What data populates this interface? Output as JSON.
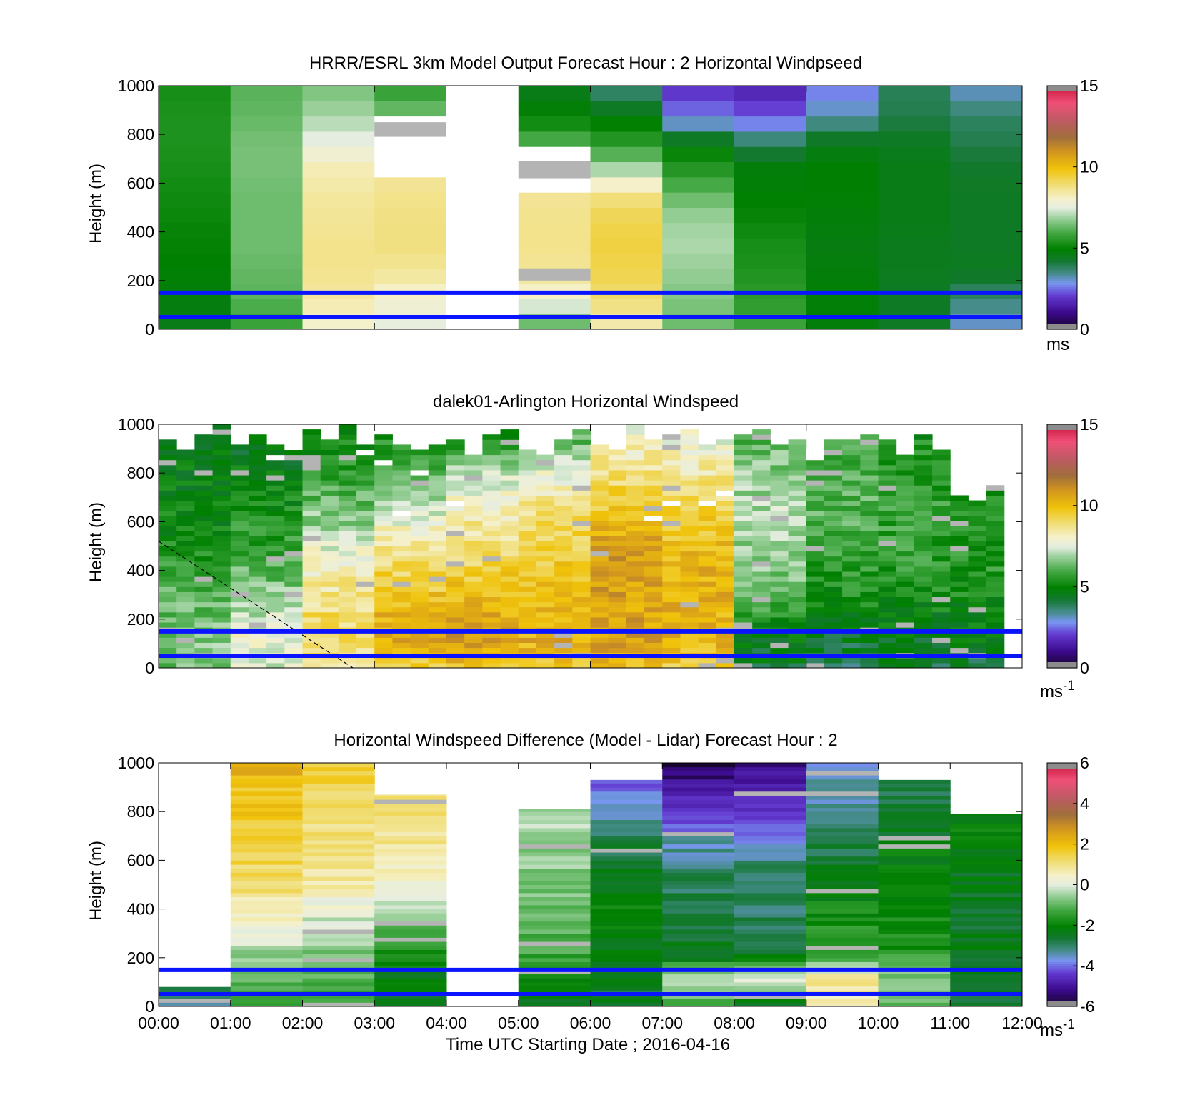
{
  "figure": {
    "x_tick_labels": [
      "00:00",
      "01:00",
      "02:00",
      "03:00",
      "04:00",
      "05:00",
      "06:00",
      "07:00",
      "08:00",
      "09:00",
      "10:00",
      "11:00",
      "12:00"
    ],
    "x_label": "Time UTC  Starting Date ; 2016-04-16"
  },
  "chart_data": [
    {
      "type": "heatmap",
      "title": "HRRR/ESRL 3km Model Output   Forecast Hour : 2 Horizontal Windpseed",
      "ylabel": "Height (m)",
      "ylim": [
        0,
        1000
      ],
      "y_ticks": [
        0,
        200,
        400,
        600,
        800,
        1000
      ],
      "xlim_hours": [
        0,
        12
      ],
      "colorbar": {
        "range": [
          0,
          15
        ],
        "ticks": [
          0,
          5,
          10,
          15
        ],
        "unit": "ms",
        "unit_sup": ""
      },
      "reference_heights_m": [
        150,
        50
      ],
      "description_columns": "hourly model columns 00:00-12:00, column 04:00-05:00 missing",
      "columns": [
        {
          "hour": 0,
          "values_by_height_bottom_to_top": [
            4.6,
            4.8,
            4.9,
            5.0,
            5.1,
            5.2,
            5.3,
            5.4,
            5.4,
            5.3
          ]
        },
        {
          "hour": 1,
          "values_by_height_bottom_to_top": [
            5.8,
            6.2,
            6.3,
            6.4,
            6.4,
            6.4,
            6.5,
            6.5,
            6.3,
            6.2
          ]
        },
        {
          "hour": 2,
          "values_by_height_bottom_to_top": [
            8.0,
            8.5,
            8.7,
            8.7,
            8.6,
            8.5,
            8.3,
            7.6,
            7.0,
            6.6
          ]
        },
        {
          "hour": 3,
          "values_by_height_bottom_to_top": [
            7.6,
            8.0,
            8.6,
            8.8,
            8.8,
            8.7,
            8.5,
            null,
            6.6,
            5.8
          ]
        },
        {
          "hour": 4,
          "values_by_height_bottom_to_top": [
            null,
            null,
            null,
            null,
            null,
            null,
            null,
            null,
            null,
            null
          ]
        },
        {
          "hour": 5,
          "values_by_height_bottom_to_top": [
            6.4,
            8.0,
            8.6,
            8.7,
            8.7,
            8.6,
            null,
            6.2,
            5.0,
            4.6
          ]
        },
        {
          "hour": 6,
          "values_by_height_bottom_to_top": [
            8.4,
            9.0,
            9.3,
            9.4,
            9.3,
            8.8,
            7.0,
            5.6,
            4.8,
            3.8
          ]
        },
        {
          "hour": 7,
          "values_by_height_bottom_to_top": [
            6.4,
            6.6,
            6.8,
            7.0,
            6.9,
            6.3,
            5.5,
            4.8,
            2.7,
            2.0
          ]
        },
        {
          "hour": 8,
          "values_by_height_bottom_to_top": [
            5.8,
            5.6,
            5.4,
            5.3,
            5.1,
            4.9,
            4.8,
            3.9,
            2.4,
            1.7
          ]
        },
        {
          "hour": 9,
          "values_by_height_bottom_to_top": [
            4.8,
            4.9,
            4.8,
            4.7,
            4.8,
            4.9,
            4.9,
            4.6,
            3.3,
            2.7
          ]
        },
        {
          "hour": 10,
          "values_by_height_bottom_to_top": [
            4.4,
            4.4,
            4.5,
            4.5,
            4.6,
            4.6,
            4.6,
            4.5,
            4.0,
            3.9
          ]
        },
        {
          "hour": 11,
          "values_by_height_bottom_to_top": [
            3.1,
            3.7,
            4.5,
            4.4,
            4.4,
            4.4,
            4.3,
            4.0,
            3.8,
            3.2
          ]
        }
      ]
    },
    {
      "type": "heatmap",
      "title": "dalek01-Arlington  Horizontal Windspeed",
      "ylabel": "Height (m)",
      "ylim": [
        0,
        1000
      ],
      "y_ticks": [
        0,
        200,
        400,
        600,
        800,
        1000
      ],
      "xlim_hours": [
        0,
        12
      ],
      "colorbar": {
        "range": [
          0,
          15
        ],
        "ticks": [
          0,
          5,
          10,
          15
        ],
        "unit": "ms",
        "unit_sup": "-1"
      },
      "reference_heights_m": [
        150,
        50
      ],
      "description_columns": "lidar profiles every 15 min 00:00-11:45; max height decreases after 09:00",
      "hourly_profiles": [
        {
          "hour": 0,
          "values_bottom_to_top": [
            6.5,
            6.6,
            6.4,
            6.0,
            5.6,
            5.2,
            5.0,
            4.8,
            4.7,
            4.7
          ],
          "top_m": 1000
        },
        {
          "hour": 1,
          "values_bottom_to_top": [
            7.5,
            7.8,
            7.2,
            6.6,
            6.0,
            5.6,
            5.2,
            4.9,
            4.6,
            4.5
          ],
          "top_m": 1000
        },
        {
          "hour": 2,
          "values_bottom_to_top": [
            8.6,
            9.2,
            9.0,
            8.6,
            8.0,
            7.2,
            6.4,
            5.8,
            5.3,
            5.0
          ],
          "top_m": 1000
        },
        {
          "hour": 3,
          "values_bottom_to_top": [
            9.4,
            10.5,
            10.2,
            9.6,
            9.0,
            8.2,
            7.2,
            6.2,
            5.6,
            5.2
          ],
          "top_m": 1000
        },
        {
          "hour": 4,
          "values_bottom_to_top": [
            9.8,
            11.0,
            10.4,
            9.8,
            9.2,
            8.7,
            8.0,
            7.4,
            6.0,
            5.0
          ],
          "top_m": 980
        },
        {
          "hour": 5,
          "values_bottom_to_top": [
            9.6,
            10.4,
            10.0,
            9.8,
            9.6,
            9.3,
            8.8,
            8.0,
            6.8,
            5.6
          ],
          "top_m": 980
        },
        {
          "hour": 6,
          "values_bottom_to_top": [
            9.8,
            10.8,
            10.6,
            10.8,
            10.9,
            10.4,
            9.6,
            9.0,
            8.3,
            7.4
          ],
          "top_m": 1000
        },
        {
          "hour": 7,
          "values_bottom_to_top": [
            9.6,
            10.3,
            10.2,
            10.4,
            10.2,
            9.8,
            9.2,
            8.6,
            8.0,
            7.4
          ],
          "top_m": 1000
        },
        {
          "hour": 8,
          "values_bottom_to_top": [
            4.4,
            4.6,
            5.6,
            6.4,
            6.8,
            7.0,
            7.0,
            6.8,
            6.4,
            6.0
          ],
          "top_m": 1000
        },
        {
          "hour": 9,
          "values_bottom_to_top": [
            4.0,
            4.4,
            5.0,
            5.4,
            5.8,
            6.0,
            6.2,
            6.0,
            5.8,
            5.6
          ],
          "top_m": 1000
        },
        {
          "hour": 10,
          "values_bottom_to_top": [
            4.2,
            4.5,
            5.0,
            5.4,
            5.6,
            5.7,
            5.8,
            5.6,
            5.4,
            5.2
          ],
          "top_m": 950
        },
        {
          "hour": 11,
          "values_bottom_to_top": [
            4.3,
            4.6,
            5.0,
            5.4,
            5.5,
            5.5,
            5.3,
            5.0,
            4.6,
            4.4
          ],
          "top_m": 780
        }
      ],
      "dashed_line": {
        "from_hours": 0,
        "from_height_m": 520,
        "to_hours": 2.7,
        "to_height_m": 0
      }
    },
    {
      "type": "heatmap",
      "title": "Horizontal Windspeed Difference (Model - Lidar) Forecast Hour : 2",
      "ylabel": "Height (m)",
      "xlabel": "Time UTC  Starting Date ; 2016-04-16",
      "ylim": [
        0,
        1000
      ],
      "y_ticks": [
        0,
        200,
        400,
        600,
        800,
        1000
      ],
      "xlim_hours": [
        0,
        12
      ],
      "colorbar": {
        "range": [
          -6,
          6
        ],
        "ticks": [
          -6,
          -4,
          -2,
          0,
          2,
          4,
          6
        ],
        "unit": "ms",
        "unit_sup": "-1"
      },
      "reference_heights_m": [
        150,
        50
      ],
      "columns": [
        {
          "hour": 0,
          "top_m": 80,
          "values_bottom_to_top": [
            -3.0,
            -3.0,
            -3.0,
            -3.0,
            -3.0,
            -3.0,
            -3.0,
            -3.0,
            -3.0,
            -3.0
          ]
        },
        {
          "hour": 1,
          "top_m": 1000,
          "values_bottom_to_top": [
            -1.2,
            -0.9,
            -0.4,
            0.2,
            0.9,
            1.3,
            1.6,
            1.7,
            1.9,
            2.4
          ]
        },
        {
          "hour": 2,
          "top_m": 1000,
          "values_bottom_to_top": [
            -1.6,
            -1.2,
            -0.7,
            -0.2,
            0.4,
            0.9,
            1.1,
            1.2,
            1.4,
            1.6
          ]
        },
        {
          "hour": 3,
          "top_m": 870,
          "values_bottom_to_top": [
            -2.4,
            -2.2,
            -1.8,
            -1.0,
            -0.2,
            0.5,
            0.9,
            1.1,
            1.2,
            1.3
          ]
        },
        {
          "hour": 4,
          "top_m": 0,
          "values_bottom_to_top": [
            null,
            null,
            null,
            null,
            null,
            null,
            null,
            null,
            null,
            null
          ]
        },
        {
          "hour": 5,
          "top_m": 810,
          "values_bottom_to_top": [
            -2.6,
            -1.8,
            -1.3,
            -1.0,
            -0.8,
            -0.6,
            -0.5,
            -0.4,
            -0.3,
            -0.3
          ]
        },
        {
          "hour": 6,
          "top_m": 930,
          "values_bottom_to_top": [
            -2.6,
            -2.4,
            -2.2,
            -2.0,
            -2.1,
            -2.4,
            -2.8,
            -3.2,
            -4.0,
            -4.6
          ]
        },
        {
          "hour": 7,
          "top_m": 1000,
          "values_bottom_to_top": [
            -1.4,
            -0.4,
            -2.5,
            -2.6,
            -2.8,
            -3.0,
            -3.4,
            -4.2,
            -5.0,
            -5.6
          ]
        },
        {
          "hour": 8,
          "top_m": 1000,
          "values_bottom_to_top": [
            -2.6,
            0.5,
            -2.5,
            -2.8,
            -3.0,
            -3.0,
            -3.6,
            -4.4,
            -5.0,
            -5.2
          ]
        },
        {
          "hour": 9,
          "top_m": 1000,
          "values_bottom_to_top": [
            0.8,
            0.9,
            -1.8,
            -1.7,
            -2.0,
            -2.4,
            -2.8,
            -3.3,
            -3.4,
            -3.6
          ]
        },
        {
          "hour": 10,
          "top_m": 930,
          "values_bottom_to_top": [
            -1.2,
            -0.6,
            -1.6,
            -1.8,
            -1.9,
            -2.0,
            -2.2,
            -2.6,
            -2.8,
            -2.8
          ]
        },
        {
          "hour": 11,
          "top_m": 790,
          "values_bottom_to_top": [
            -2.6,
            -2.5,
            -2.4,
            -2.4,
            -2.4,
            -2.3,
            -2.2,
            -2.0,
            -1.8,
            -1.6
          ]
        }
      ]
    }
  ],
  "colors": {
    "reference_line": "#0a14ff",
    "missing": "#ffffff"
  }
}
